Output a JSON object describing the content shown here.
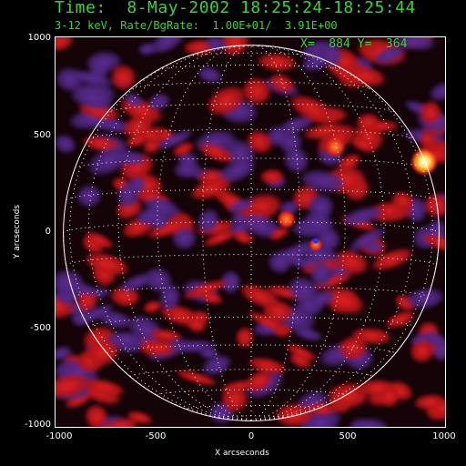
{
  "header": {
    "time_line": "Time:  8-May-2002 18:25:24-18:25:44",
    "energy_line": "3-12 keV, Rate/BgRate:  1.00E+01/  3.91E+00",
    "cursor_readout": "X=  884 Y=  364"
  },
  "axes": {
    "xlabel": "X arcseconds",
    "ylabel": "Y arcseconds",
    "x_ticks": [
      "-1000",
      "-500",
      "0",
      "500",
      "1000"
    ],
    "y_ticks": [
      "1000",
      "500",
      "0",
      "-500",
      "-1000"
    ],
    "xlim": [
      -1000,
      1000
    ],
    "ylim": [
      -1000,
      1000
    ]
  },
  "image": {
    "colormap": [
      "#000000",
      "#5a2a8c",
      "#c8161e",
      "#ff6a1a",
      "#ffffa0"
    ],
    "limb_color": "#ffffff",
    "grid_color": "#ffffff",
    "source_color": "#ffffdc",
    "marker_color": "#2233ff"
  }
}
